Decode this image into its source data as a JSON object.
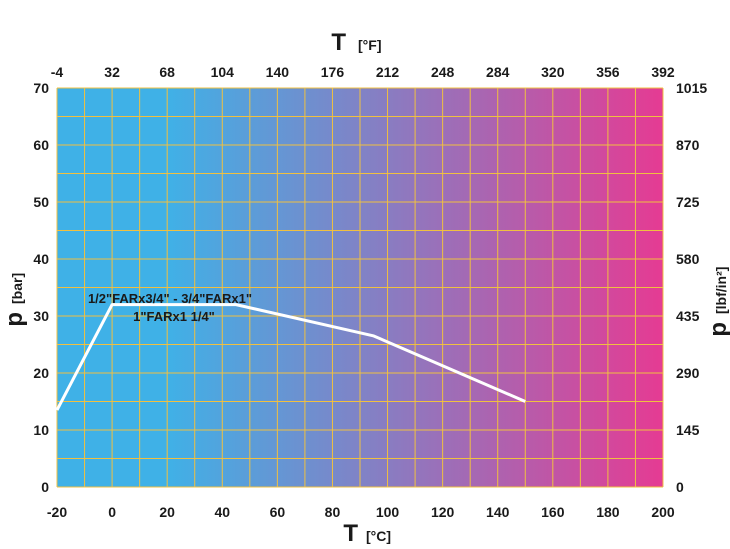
{
  "chart_data": {
    "type": "line",
    "title": "",
    "x_bottom": {
      "label_symbol": "T",
      "label_unit": "[°C]",
      "ticks": [
        "-20",
        "0",
        "20",
        "40",
        "60",
        "80",
        "100",
        "120",
        "140",
        "160",
        "180",
        "200"
      ],
      "range": [
        -20,
        200
      ]
    },
    "x_top": {
      "label_symbol": "T",
      "label_unit": "[°F]",
      "ticks": [
        "-4",
        "32",
        "68",
        "104",
        "140",
        "176",
        "212",
        "248",
        "284",
        "320",
        "356",
        "392"
      ]
    },
    "y_left": {
      "label_symbol": "p",
      "label_unit": "[bar]",
      "ticks": [
        "0",
        "10",
        "20",
        "30",
        "40",
        "50",
        "60",
        "70"
      ],
      "range": [
        0,
        70
      ]
    },
    "y_right": {
      "label_symbol": "p",
      "label_unit": "[lbf/in²]",
      "ticks": [
        "0",
        "145",
        "290",
        "435",
        "580",
        "725",
        "870",
        "1015"
      ]
    },
    "grid": true,
    "background_gradient": [
      "#3fb1e7",
      "#e53b93"
    ],
    "grid_color": "#f0c040",
    "line_color": "#ffffff",
    "series": [
      {
        "name": "",
        "points": [
          [
            -20,
            13.5
          ],
          [
            0,
            32
          ],
          [
            45,
            32
          ],
          [
            95,
            26.5
          ],
          [
            150,
            15
          ]
        ]
      }
    ],
    "annotations": [
      "1/2\"FARx3/4\" - 3/4\"FARx1\"",
      "1\"FARx1 1/4\""
    ]
  }
}
